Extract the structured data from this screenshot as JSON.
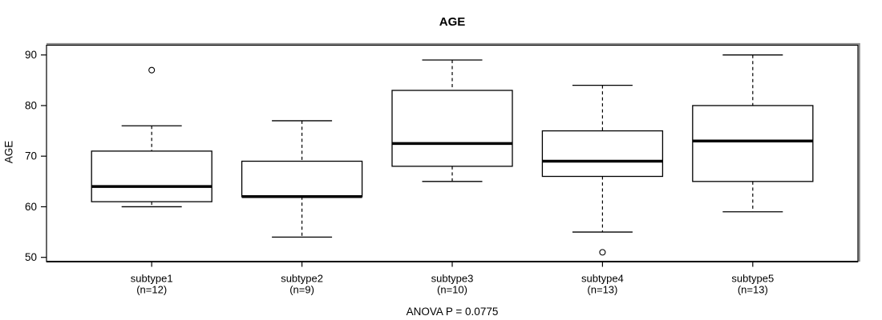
{
  "chart_data": {
    "type": "boxplot",
    "title": "AGE",
    "ylabel": "AGE",
    "xlabel": "",
    "annotation": "ANOVA P = 0.0775",
    "yticks": [
      50,
      60,
      70,
      80,
      90
    ],
    "ylim": [
      48.4,
      91.6
    ],
    "grid": false,
    "legend": null,
    "categories": [
      "subtype1",
      "subtype2",
      "subtype3",
      "subtype4",
      "subtype5"
    ],
    "category_sublabels": [
      "(n=12)",
      "(n=9)",
      "(n=10)",
      "(n=13)",
      "(n=13)"
    ],
    "series": [
      {
        "label": "subtype1",
        "n": 12,
        "whisker_low": 60,
        "q1": 61,
        "median": 64,
        "q3": 71,
        "whisker_high": 76,
        "outliers": [
          87
        ]
      },
      {
        "label": "subtype2",
        "n": 9,
        "whisker_low": 54,
        "q1": 62,
        "median": 62,
        "q3": 69,
        "whisker_high": 77,
        "outliers": []
      },
      {
        "label": "subtype3",
        "n": 10,
        "whisker_low": 65,
        "q1": 68,
        "median": 72.5,
        "q3": 83,
        "whisker_high": 89,
        "outliers": []
      },
      {
        "label": "subtype4",
        "n": 13,
        "whisker_low": 55,
        "q1": 66,
        "median": 69,
        "q3": 75,
        "whisker_high": 84,
        "outliers": [
          51
        ]
      },
      {
        "label": "subtype5",
        "n": 13,
        "whisker_low": 59,
        "q1": 65,
        "median": 73,
        "q3": 80,
        "whisker_high": 90,
        "outliers": []
      }
    ],
    "colors": {
      "stroke": "#000000",
      "fill": "#ffffff",
      "background": "#ffffff",
      "frame_shadow": "#8c8c8c"
    }
  }
}
